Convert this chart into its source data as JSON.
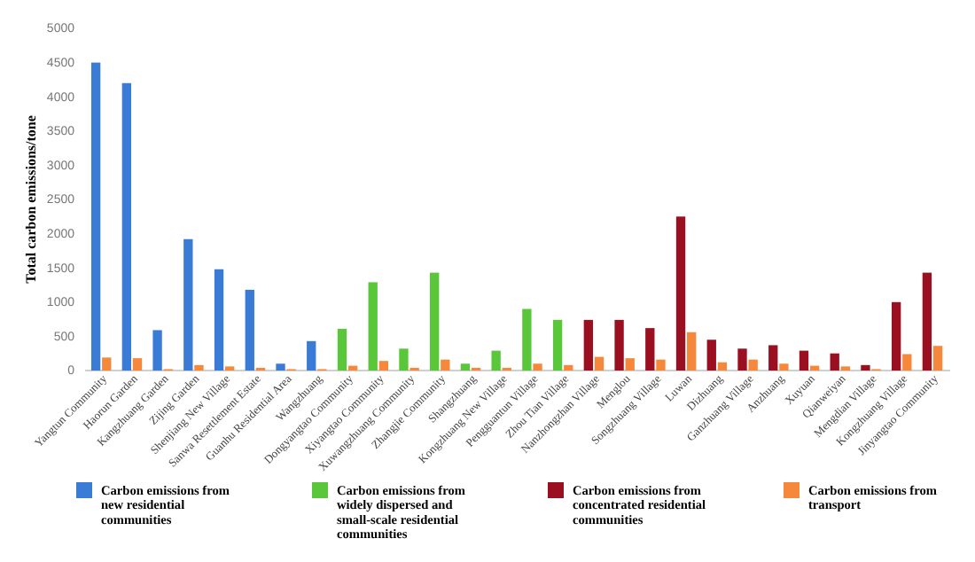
{
  "chart_data": {
    "type": "bar",
    "ylabel": "Total carbon emissions/tone",
    "categories": [
      "Yangtun Community",
      "Haorun Garden",
      "Kangzhuang Garden",
      "Zijing Garden",
      "Shenjiang New Village",
      "Sanwa Resettlement Estate",
      "Guanhu Residential Area",
      "Wangzhuang",
      "Dongyangtao Community",
      "Xiyangtao Community",
      "Xuwangzhuang Community",
      "Zhangjie Community",
      "Shangzhuang",
      "Kongzhuang New Village",
      "Pengguantun Village",
      "Zhou Tian Village",
      "Nanzhongzhan Village",
      "Menglou",
      "Songzhuang Village",
      "Luwan",
      "Dizhuang",
      "Ganzhuang Village",
      "Anzhuang",
      "Xuyuan",
      "Qianweiyan",
      "Mengdian Village",
      "Kongzhuang Village",
      "Jinyangtao Community"
    ],
    "series": [
      {
        "name": "Carbon emissions from new residential communities",
        "color": "#3a7bd5",
        "values": [
          4500,
          4200,
          590,
          1920,
          1480,
          1180,
          100,
          430,
          null,
          null,
          null,
          null,
          null,
          null,
          null,
          null,
          null,
          null,
          null,
          null,
          null,
          null,
          null,
          null,
          null,
          null,
          null,
          null
        ]
      },
      {
        "name": "Carbon emissions from widely dispersed and small-scale residential communities",
        "color": "#5ac73a",
        "values": [
          null,
          null,
          null,
          null,
          null,
          null,
          null,
          null,
          610,
          1290,
          320,
          1430,
          100,
          290,
          900,
          740,
          null,
          null,
          null,
          null,
          null,
          null,
          null,
          null,
          null,
          null,
          null,
          null
        ]
      },
      {
        "name": "Carbon emissions from concentrated residential communities",
        "color": "#9b1020",
        "values": [
          null,
          null,
          null,
          null,
          null,
          null,
          null,
          null,
          null,
          null,
          null,
          null,
          null,
          null,
          null,
          null,
          740,
          740,
          620,
          2250,
          450,
          320,
          370,
          290,
          250,
          80,
          1000,
          1430
        ]
      },
      {
        "name": "Carbon emissions from transport",
        "color": "#f5883a",
        "values": [
          190,
          180,
          20,
          80,
          60,
          40,
          20,
          20,
          70,
          140,
          40,
          160,
          40,
          40,
          100,
          80,
          200,
          180,
          160,
          560,
          120,
          160,
          100,
          70,
          60,
          20,
          240,
          360
        ]
      }
    ],
    "ylim": [
      0,
      5000
    ],
    "yticks": [
      0,
      500,
      1000,
      1500,
      2000,
      2500,
      3000,
      3500,
      4000,
      4500,
      5000
    ],
    "grid": false,
    "legend": "bottom"
  }
}
